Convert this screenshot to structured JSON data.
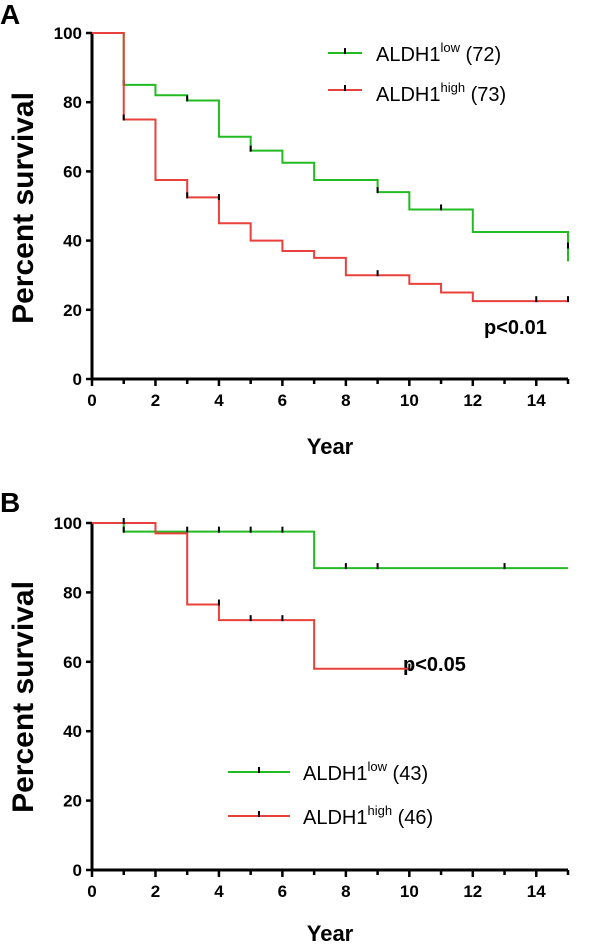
{
  "chart_data": [
    {
      "panel": "A",
      "type": "line",
      "subtype": "kaplan-meier step",
      "xlabel": "Year",
      "ylabel": "Percent survival",
      "xlim": [
        0,
        15
      ],
      "ylim": [
        0,
        100
      ],
      "xticks": [
        0,
        2,
        4,
        6,
        8,
        10,
        12,
        14
      ],
      "yticks": [
        0,
        20,
        40,
        60,
        80,
        100
      ],
      "grid": false,
      "legend_position": "top-right",
      "annotation": "p<0.01",
      "series": [
        {
          "name_main": "ALDH1",
          "name_sup": "low",
          "name_suffix": " (72)",
          "color": "#22bb22",
          "steps": [
            [
              0,
              100
            ],
            [
              1,
              85
            ],
            [
              2,
              82
            ],
            [
              3,
              80.5
            ],
            [
              4,
              70
            ],
            [
              5,
              66
            ],
            [
              6,
              62.5
            ],
            [
              7,
              57.5
            ],
            [
              9,
              54
            ],
            [
              10,
              49
            ],
            [
              12,
              42.5
            ],
            [
              15,
              38
            ],
            [
              15,
              34
            ]
          ],
          "censored": [
            [
              1,
              85
            ],
            [
              3,
              80.5
            ],
            [
              5,
              66
            ],
            [
              9,
              54
            ],
            [
              11,
              49
            ],
            [
              15,
              38
            ]
          ]
        },
        {
          "name_main": "ALDH1",
          "name_sup": "high",
          "name_suffix": " (73)",
          "color": "#e8403a",
          "steps": [
            [
              0,
              100
            ],
            [
              1,
              75
            ],
            [
              2,
              57.5
            ],
            [
              3,
              52.5
            ],
            [
              4,
              45
            ],
            [
              5,
              40
            ],
            [
              6,
              37
            ],
            [
              7,
              35
            ],
            [
              8,
              30
            ],
            [
              10,
              27.5
            ],
            [
              11,
              25
            ],
            [
              12,
              22.5
            ],
            [
              15,
              22.5
            ]
          ],
          "censored": [
            [
              1,
              75
            ],
            [
              3,
              52.5
            ],
            [
              4,
              52
            ],
            [
              9,
              30
            ],
            [
              14,
              22.5
            ],
            [
              15,
              22.5
            ]
          ]
        }
      ]
    },
    {
      "panel": "B",
      "type": "line",
      "subtype": "kaplan-meier step",
      "xlabel": "Year",
      "ylabel": "Percent survival",
      "xlim": [
        0,
        15
      ],
      "ylim": [
        0,
        100
      ],
      "xticks": [
        0,
        2,
        4,
        6,
        8,
        10,
        12,
        14
      ],
      "yticks": [
        0,
        20,
        40,
        60,
        80,
        100
      ],
      "grid": false,
      "legend_position": "bottom-center",
      "annotation": "p<0.05",
      "series": [
        {
          "name_main": "ALDH1",
          "name_sup": "low",
          "name_suffix": " (43)",
          "color": "#22bb22",
          "steps": [
            [
              0,
              100
            ],
            [
              1,
              97.5
            ],
            [
              7,
              87
            ],
            [
              15,
              87
            ]
          ],
          "censored": [
            [
              1,
              97.5
            ],
            [
              3,
              97.5
            ],
            [
              4,
              97.5
            ],
            [
              5,
              97.5
            ],
            [
              6,
              97.5
            ],
            [
              8,
              87
            ],
            [
              9,
              87
            ],
            [
              13,
              87
            ]
          ]
        },
        {
          "name_main": "ALDH1",
          "name_sup": "high",
          "name_suffix": " (46)",
          "color": "#e8403a",
          "steps": [
            [
              0,
              100
            ],
            [
              2,
              97
            ],
            [
              3,
              76.5
            ],
            [
              4,
              72
            ],
            [
              7,
              58
            ],
            [
              10,
              58
            ]
          ],
          "censored": [
            [
              1,
              100
            ],
            [
              4,
              76.5
            ],
            [
              5,
              72
            ],
            [
              6,
              72
            ],
            [
              10,
              58
            ]
          ]
        }
      ]
    }
  ]
}
